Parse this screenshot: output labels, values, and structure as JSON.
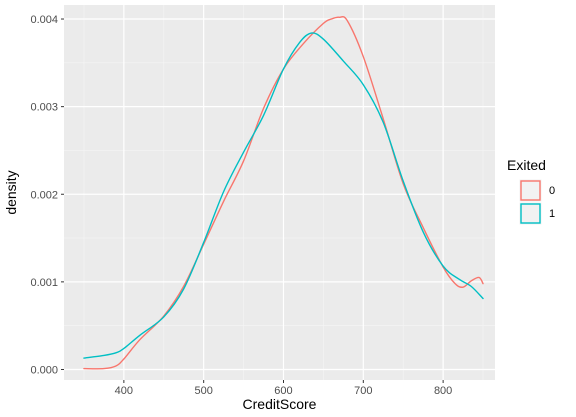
{
  "chart_data": {
    "type": "line",
    "subtype": "density",
    "xlabel": "CreditScore",
    "ylabel": "density",
    "xlim": [
      325,
      865
    ],
    "ylim": [
      -0.00012,
      0.00416
    ],
    "x_ticks": [
      400,
      500,
      600,
      700,
      800
    ],
    "x_tick_labels": [
      "400",
      "500",
      "600",
      "700",
      "800"
    ],
    "y_ticks": [
      0,
      0.001,
      0.002,
      0.003,
      0.004
    ],
    "y_tick_labels": [
      "0.000",
      "0.001",
      "0.002",
      "0.003",
      "0.004"
    ],
    "grid": true,
    "legend": {
      "title": "Exited",
      "position": "right"
    },
    "series": [
      {
        "name": "0",
        "color": "#F8766D",
        "x": [
          350,
          375,
          390,
          400,
          420,
          450,
          475,
          500,
          525,
          550,
          575,
          600,
          625,
          650,
          660,
          670,
          680,
          700,
          725,
          750,
          775,
          800,
          815,
          825,
          835,
          845,
          850
        ],
        "y": [
          1e-05,
          1e-05,
          4e-05,
          0.00012,
          0.00034,
          0.00061,
          0.00095,
          0.00143,
          0.00192,
          0.00238,
          0.00298,
          0.00343,
          0.00372,
          0.00395,
          0.004,
          0.00402,
          0.00398,
          0.00357,
          0.00286,
          0.00212,
          0.00162,
          0.00117,
          0.00098,
          0.00094,
          0.00101,
          0.00105,
          0.00098
        ]
      },
      {
        "name": "1",
        "color": "#00BFC4",
        "x": [
          350,
          375,
          390,
          400,
          420,
          450,
          475,
          500,
          525,
          550,
          575,
          600,
          620,
          635,
          650,
          675,
          700,
          725,
          750,
          775,
          800,
          820,
          835,
          850
        ],
        "y": [
          0.00013,
          0.00016,
          0.00019,
          0.00024,
          0.00039,
          0.0006,
          0.00092,
          0.00145,
          0.00203,
          0.00248,
          0.0029,
          0.00343,
          0.00373,
          0.00384,
          0.00377,
          0.00352,
          0.00325,
          0.00282,
          0.00215,
          0.00157,
          0.00118,
          0.00103,
          0.00095,
          0.00081
        ]
      }
    ]
  }
}
